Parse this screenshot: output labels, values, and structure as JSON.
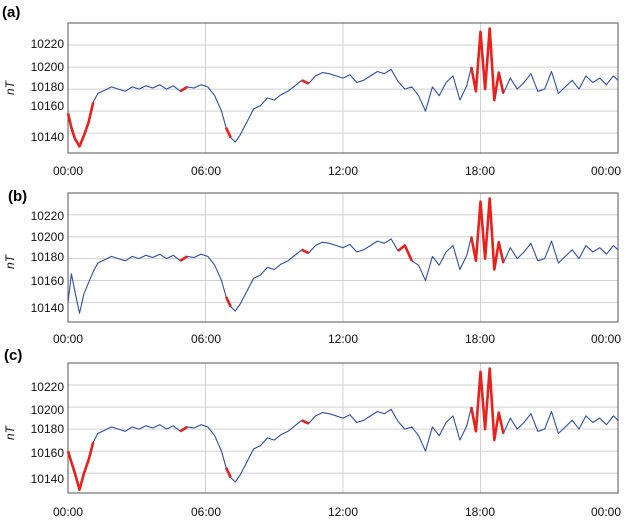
{
  "chart_data": [
    {
      "type": "line",
      "panel_label": "(a)",
      "ylabel": "nT",
      "xlim": [
        0,
        24
      ],
      "ylim": [
        10122,
        10240
      ],
      "x_ticks": [
        "00:00",
        "06:00",
        "12:00",
        "18:00",
        "00:00"
      ],
      "y_ticks": [
        10140,
        10160,
        10180,
        10200,
        10220
      ],
      "grid": true,
      "line_color": "#2f4fa0",
      "highlight_color": "#e8211c",
      "series": [
        {
          "x": [
            0,
            0.15,
            0.3,
            0.5,
            0.7,
            0.9,
            1.1,
            1.3,
            1.6,
            1.9,
            2.2,
            2.5,
            2.8,
            3.1,
            3.4,
            3.7,
            4.0,
            4.3,
            4.6,
            4.9,
            5.2,
            5.5,
            5.8,
            6.1,
            6.4,
            6.7,
            6.9,
            7.1,
            7.3,
            7.5,
            7.8,
            8.1,
            8.4,
            8.7,
            9.0,
            9.3,
            9.6,
            9.9,
            10.2,
            10.5,
            10.8,
            11.1,
            11.4,
            11.7,
            12.0,
            12.3,
            12.6,
            12.9,
            13.2,
            13.5,
            13.8,
            14.1,
            14.4,
            14.7,
            15.0,
            15.3,
            15.6,
            15.9,
            16.2,
            16.5,
            16.8,
            17.1,
            17.4,
            17.6,
            17.8,
            18.0,
            18.2,
            18.4,
            18.6,
            18.8,
            19.0,
            19.3,
            19.6,
            19.9,
            20.2,
            20.5,
            20.8,
            21.1,
            21.4,
            21.7,
            22.0,
            22.3,
            22.6,
            22.9,
            23.2,
            23.5,
            23.8,
            24.0
          ],
          "y": [
            10158,
            10145,
            10135,
            10128,
            10138,
            10150,
            10168,
            10176,
            10179,
            10182,
            10180,
            10178,
            10182,
            10180,
            10183,
            10181,
            10184,
            10180,
            10183,
            10178,
            10182,
            10181,
            10184,
            10182,
            10174,
            10160,
            10145,
            10136,
            10132,
            10138,
            10150,
            10162,
            10165,
            10172,
            10170,
            10175,
            10178,
            10183,
            10188,
            10185,
            10192,
            10195,
            10194,
            10192,
            10190,
            10193,
            10186,
            10188,
            10192,
            10196,
            10194,
            10198,
            10187,
            10180,
            10182,
            10174,
            10160,
            10182,
            10174,
            10186,
            10192,
            10170,
            10183,
            10200,
            10178,
            10232,
            10180,
            10235,
            10170,
            10195,
            10176,
            10190,
            10180,
            10186,
            10194,
            10178,
            10180,
            10196,
            10176,
            10182,
            10188,
            10180,
            10192,
            10186,
            10190,
            10184,
            10192,
            10188
          ]
        }
      ],
      "highlights": [
        {
          "x": [
            0,
            0.15,
            0.3,
            0.5,
            0.7,
            0.9,
            1.1
          ],
          "y": [
            10158,
            10145,
            10135,
            10128,
            10138,
            10150,
            10168
          ]
        },
        {
          "x": [
            4.9,
            5.2
          ],
          "y": [
            10178,
            10182
          ]
        },
        {
          "x": [
            6.9,
            7.1
          ],
          "y": [
            10145,
            10136
          ]
        },
        {
          "x": [
            10.2,
            10.5
          ],
          "y": [
            10188,
            10185
          ]
        },
        {
          "x": [
            17.6,
            17.8,
            18.0,
            18.2,
            18.4,
            18.6,
            18.8,
            19.0
          ],
          "y": [
            10200,
            10178,
            10232,
            10180,
            10235,
            10170,
            10195,
            10176
          ]
        }
      ]
    },
    {
      "type": "line",
      "panel_label": "(b)",
      "ylabel": "nT",
      "xlim": [
        0,
        24
      ],
      "ylim": [
        10122,
        10240
      ],
      "x_ticks": [
        "00:00",
        "06:00",
        "12:00",
        "18:00",
        "00:00"
      ],
      "y_ticks": [
        10140,
        10160,
        10180,
        10200,
        10220
      ],
      "grid": true,
      "line_color": "#2f4fa0",
      "highlight_color": "#e8211c",
      "series": [
        {
          "x": [
            0,
            0.15,
            0.3,
            0.5,
            0.7,
            0.9,
            1.1,
            1.3,
            1.6,
            1.9,
            2.2,
            2.5,
            2.8,
            3.1,
            3.4,
            3.7,
            4.0,
            4.3,
            4.6,
            4.9,
            5.2,
            5.5,
            5.8,
            6.1,
            6.4,
            6.7,
            6.9,
            7.1,
            7.3,
            7.5,
            7.8,
            8.1,
            8.4,
            8.7,
            9.0,
            9.3,
            9.6,
            9.9,
            10.2,
            10.5,
            10.8,
            11.1,
            11.4,
            11.7,
            12.0,
            12.3,
            12.6,
            12.9,
            13.2,
            13.5,
            13.8,
            14.1,
            14.4,
            14.7,
            15.0,
            15.3,
            15.6,
            15.9,
            16.2,
            16.5,
            16.8,
            17.1,
            17.4,
            17.6,
            17.8,
            18.0,
            18.2,
            18.4,
            18.6,
            18.8,
            19.0,
            19.3,
            19.6,
            19.9,
            20.2,
            20.5,
            20.8,
            21.1,
            21.4,
            21.7,
            22.0,
            22.3,
            22.6,
            22.9,
            23.2,
            23.5,
            23.8,
            24.0
          ],
          "y": [
            10140,
            10166,
            10150,
            10130,
            10148,
            10158,
            10168,
            10176,
            10179,
            10182,
            10180,
            10178,
            10182,
            10180,
            10183,
            10181,
            10184,
            10180,
            10183,
            10178,
            10182,
            10181,
            10184,
            10182,
            10174,
            10160,
            10145,
            10136,
            10132,
            10138,
            10150,
            10162,
            10165,
            10172,
            10170,
            10175,
            10178,
            10183,
            10188,
            10185,
            10192,
            10195,
            10194,
            10192,
            10190,
            10193,
            10186,
            10188,
            10192,
            10196,
            10194,
            10198,
            10187,
            10192,
            10178,
            10174,
            10160,
            10182,
            10174,
            10186,
            10192,
            10170,
            10183,
            10200,
            10178,
            10232,
            10180,
            10235,
            10170,
            10195,
            10176,
            10190,
            10180,
            10186,
            10194,
            10178,
            10180,
            10196,
            10176,
            10182,
            10188,
            10180,
            10192,
            10186,
            10190,
            10184,
            10192,
            10188
          ]
        }
      ],
      "highlights": [
        {
          "x": [
            4.9,
            5.2
          ],
          "y": [
            10178,
            10182
          ]
        },
        {
          "x": [
            6.9,
            7.1
          ],
          "y": [
            10145,
            10136
          ]
        },
        {
          "x": [
            10.2,
            10.5
          ],
          "y": [
            10188,
            10185
          ]
        },
        {
          "x": [
            14.4,
            14.7,
            15.0
          ],
          "y": [
            10187,
            10192,
            10178
          ]
        },
        {
          "x": [
            17.6,
            17.8,
            18.0,
            18.2,
            18.4,
            18.6,
            18.8,
            19.0
          ],
          "y": [
            10200,
            10178,
            10232,
            10180,
            10235,
            10170,
            10195,
            10176
          ]
        }
      ]
    },
    {
      "type": "line",
      "panel_label": "(c)",
      "ylabel": "nT",
      "xlim": [
        0,
        24
      ],
      "ylim": [
        10122,
        10240
      ],
      "x_ticks": [
        "00:00",
        "06:00",
        "12:00",
        "18:00",
        "00:00"
      ],
      "y_ticks": [
        10140,
        10160,
        10180,
        10200,
        10220
      ],
      "grid": true,
      "line_color": "#2f4fa0",
      "highlight_color": "#e8211c",
      "series": [
        {
          "x": [
            0,
            0.15,
            0.3,
            0.5,
            0.7,
            0.9,
            1.1,
            1.3,
            1.6,
            1.9,
            2.2,
            2.5,
            2.8,
            3.1,
            3.4,
            3.7,
            4.0,
            4.3,
            4.6,
            4.9,
            5.2,
            5.5,
            5.8,
            6.1,
            6.4,
            6.7,
            6.9,
            7.1,
            7.3,
            7.5,
            7.8,
            8.1,
            8.4,
            8.7,
            9.0,
            9.3,
            9.6,
            9.9,
            10.2,
            10.5,
            10.8,
            11.1,
            11.4,
            11.7,
            12.0,
            12.3,
            12.6,
            12.9,
            13.2,
            13.5,
            13.8,
            14.1,
            14.4,
            14.7,
            15.0,
            15.3,
            15.6,
            15.9,
            16.2,
            16.5,
            16.8,
            17.1,
            17.4,
            17.6,
            17.8,
            18.0,
            18.2,
            18.4,
            18.6,
            18.8,
            19.0,
            19.3,
            19.6,
            19.9,
            20.2,
            20.5,
            20.8,
            21.1,
            21.4,
            21.7,
            22.0,
            22.3,
            22.6,
            22.9,
            23.2,
            23.5,
            23.8,
            24.0
          ],
          "y": [
            10160,
            10150,
            10140,
            10125,
            10140,
            10152,
            10168,
            10176,
            10179,
            10182,
            10180,
            10178,
            10182,
            10180,
            10183,
            10181,
            10184,
            10180,
            10183,
            10178,
            10182,
            10181,
            10184,
            10182,
            10174,
            10160,
            10145,
            10136,
            10132,
            10138,
            10150,
            10162,
            10165,
            10172,
            10170,
            10175,
            10178,
            10183,
            10188,
            10185,
            10192,
            10195,
            10194,
            10192,
            10190,
            10193,
            10186,
            10188,
            10192,
            10196,
            10194,
            10198,
            10187,
            10180,
            10182,
            10174,
            10160,
            10182,
            10174,
            10186,
            10192,
            10170,
            10183,
            10200,
            10178,
            10232,
            10180,
            10235,
            10170,
            10195,
            10176,
            10190,
            10180,
            10186,
            10194,
            10178,
            10180,
            10196,
            10176,
            10182,
            10188,
            10180,
            10192,
            10186,
            10190,
            10184,
            10192,
            10188
          ]
        }
      ],
      "highlights": [
        {
          "x": [
            0,
            0.15,
            0.3,
            0.5,
            0.7,
            0.9,
            1.1
          ],
          "y": [
            10160,
            10150,
            10140,
            10125,
            10140,
            10152,
            10168
          ]
        },
        {
          "x": [
            4.9,
            5.2
          ],
          "y": [
            10178,
            10182
          ]
        },
        {
          "x": [
            6.9,
            7.1
          ],
          "y": [
            10145,
            10136
          ]
        },
        {
          "x": [
            10.2,
            10.5
          ],
          "y": [
            10188,
            10185
          ]
        },
        {
          "x": [
            17.6,
            17.8,
            18.0,
            18.2,
            18.4,
            18.6,
            18.8,
            19.0
          ],
          "y": [
            10200,
            10178,
            10232,
            10180,
            10235,
            10170,
            10195,
            10176
          ]
        }
      ]
    }
  ]
}
